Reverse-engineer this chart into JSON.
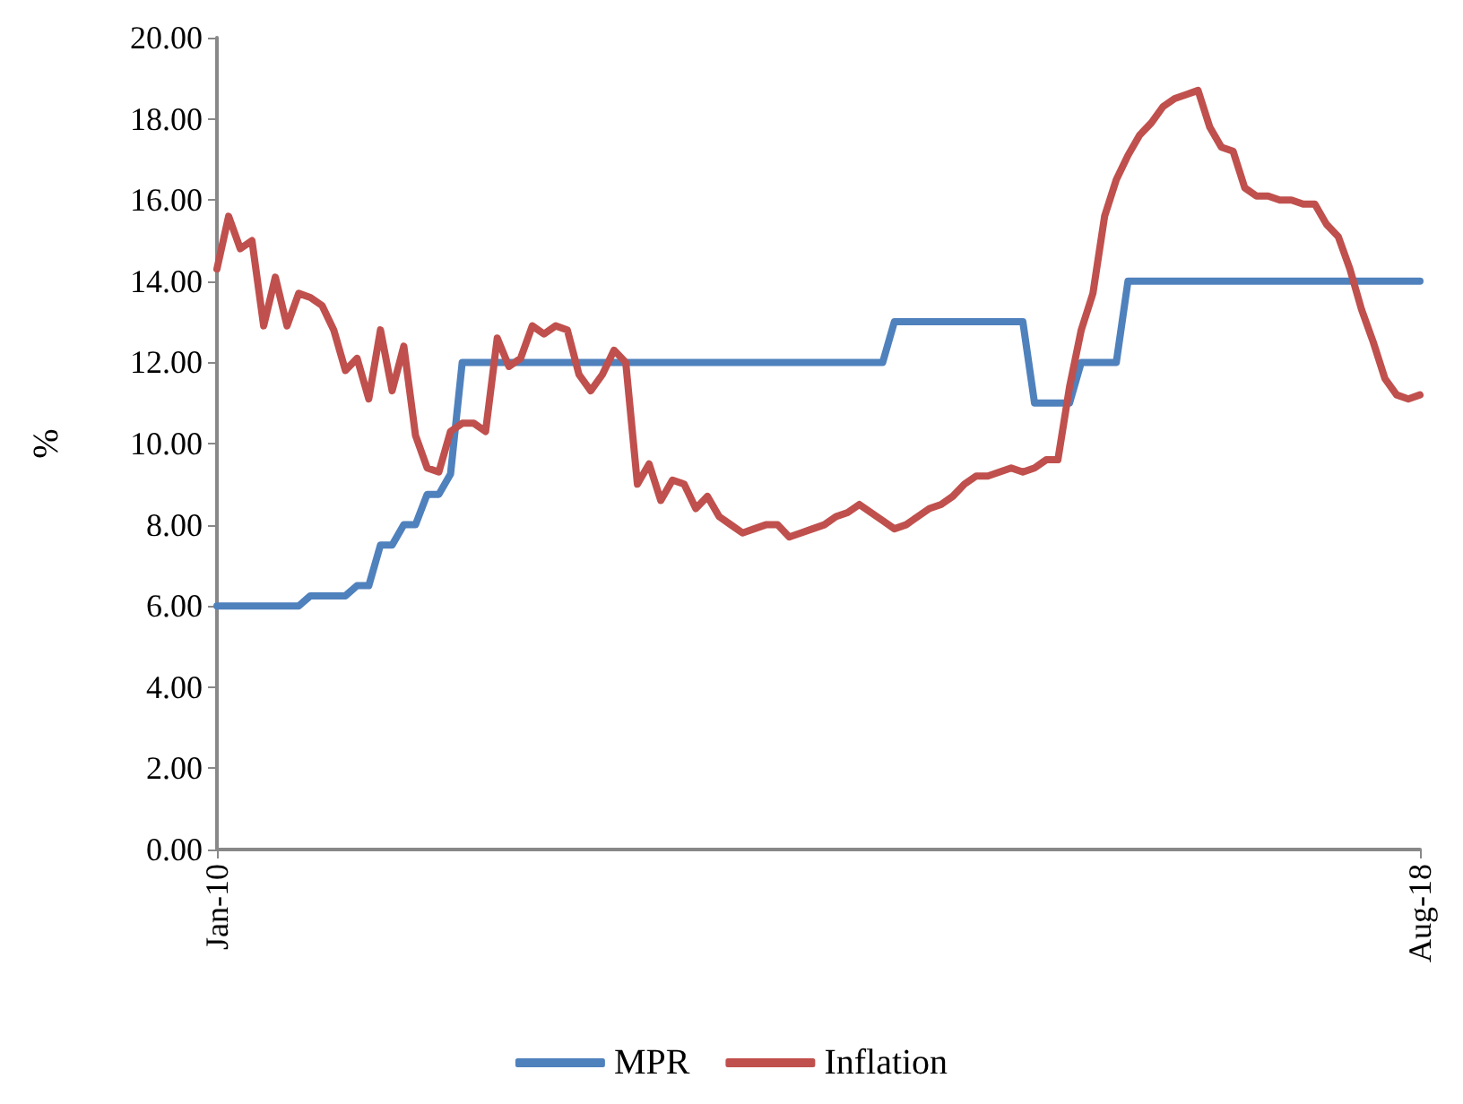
{
  "chart_data": {
    "type": "line",
    "ylabel": "%",
    "categories": [
      "Jan-10",
      null,
      null,
      null,
      null,
      null,
      null,
      null,
      null,
      null,
      null,
      null,
      null,
      null,
      null,
      null,
      null,
      null,
      null,
      null,
      null,
      null,
      null,
      null,
      null,
      null,
      null,
      null,
      null,
      null,
      null,
      null,
      null,
      null,
      null,
      null,
      null,
      null,
      null,
      null,
      null,
      null,
      null,
      null,
      null,
      null,
      null,
      null,
      null,
      null,
      null,
      null,
      null,
      null,
      null,
      null,
      null,
      null,
      null,
      null,
      null,
      null,
      null,
      null,
      null,
      null,
      null,
      null,
      null,
      null,
      null,
      null,
      null,
      null,
      null,
      null,
      null,
      null,
      null,
      null,
      null,
      null,
      null,
      null,
      null,
      null,
      null,
      null,
      null,
      null,
      null,
      null,
      null,
      null,
      null,
      null,
      null,
      null,
      null,
      null,
      null,
      null,
      null,
      "Aug-18"
    ],
    "series": [
      {
        "name": "MPR",
        "color": "#4f81bd",
        "values": [
          6,
          6,
          6,
          6,
          6,
          6,
          6,
          6,
          6.25,
          6.25,
          6.25,
          6.25,
          6.5,
          6.5,
          7.5,
          7.5,
          8,
          8,
          8.75,
          8.75,
          9.25,
          12,
          12,
          12,
          12,
          12,
          12,
          12,
          12,
          12,
          12,
          12,
          12,
          12,
          12,
          12,
          12,
          12,
          12,
          12,
          12,
          12,
          12,
          12,
          12,
          12,
          12,
          12,
          12,
          12,
          12,
          12,
          12,
          12,
          12,
          12,
          12,
          12,
          13,
          13,
          13,
          13,
          13,
          13,
          13,
          13,
          13,
          13,
          13,
          13,
          11,
          11,
          11,
          11,
          12,
          12,
          12,
          12,
          14,
          14,
          14,
          14,
          14,
          14,
          14,
          14,
          14,
          14,
          14,
          14,
          14,
          14,
          14,
          14,
          14,
          14,
          14,
          14,
          14,
          14,
          14,
          14,
          14,
          14
        ]
      },
      {
        "name": "Inflation",
        "color": "#c0504d",
        "values": [
          14.3,
          15.6,
          14.8,
          15.0,
          12.9,
          14.1,
          12.9,
          13.7,
          13.6,
          13.4,
          12.8,
          11.8,
          12.1,
          11.1,
          12.8,
          11.3,
          12.4,
          10.2,
          9.4,
          9.3,
          10.3,
          10.5,
          10.5,
          10.3,
          12.6,
          11.9,
          12.1,
          12.9,
          12.7,
          12.9,
          12.8,
          11.7,
          11.3,
          11.7,
          12.3,
          12.0,
          9.0,
          9.5,
          8.6,
          9.1,
          9.0,
          8.4,
          8.7,
          8.2,
          8.0,
          7.8,
          7.9,
          8.0,
          8.0,
          7.7,
          7.8,
          7.9,
          8.0,
          8.2,
          8.3,
          8.5,
          8.3,
          8.1,
          7.9,
          8.0,
          8.2,
          8.4,
          8.5,
          8.7,
          9.0,
          9.2,
          9.2,
          9.3,
          9.4,
          9.3,
          9.4,
          9.6,
          9.6,
          11.4,
          12.8,
          13.7,
          15.6,
          16.5,
          17.1,
          17.6,
          17.9,
          18.3,
          18.5,
          18.6,
          18.7,
          17.8,
          17.3,
          17.2,
          16.3,
          16.1,
          16.1,
          16.0,
          16.0,
          15.9,
          15.9,
          15.4,
          15.1,
          14.3,
          13.3,
          12.5,
          11.6,
          11.2,
          11.1,
          11.2
        ]
      }
    ],
    "ylim": [
      0,
      20
    ],
    "yticks": [
      {
        "value": 0,
        "label": "0.00"
      },
      {
        "value": 2,
        "label": "2.00"
      },
      {
        "value": 4,
        "label": "4.00"
      },
      {
        "value": 6,
        "label": "6.00"
      },
      {
        "value": 8,
        "label": "8.00"
      },
      {
        "value": 10,
        "label": "10.00"
      },
      {
        "value": 12,
        "label": "12.00"
      },
      {
        "value": 14,
        "label": "14.00"
      },
      {
        "value": 16,
        "label": "16.00"
      },
      {
        "value": 18,
        "label": "18.00"
      },
      {
        "value": 20,
        "label": "20.00"
      }
    ],
    "grid": false,
    "legend": "bottom",
    "marker": "none",
    "line_style": "solid"
  }
}
